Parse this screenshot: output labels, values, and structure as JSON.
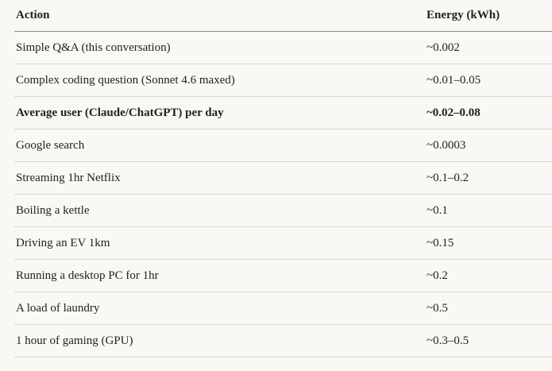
{
  "table": {
    "header": [
      "Action",
      "Energy (kWh)"
    ],
    "rows": [
      [
        "Simple Q&A (this conversation)",
        "~0.002"
      ],
      [
        "Complex coding question (Sonnet 4.6 maxed)",
        "~0.01–0.05"
      ],
      [
        "Average user (Claude/ChatGPT) per day",
        "~0.02–0.08"
      ],
      [
        "Google search",
        "~0.0003"
      ],
      [
        "Streaming 1hr Netflix",
        "~0.1–0.2"
      ],
      [
        "Boiling a kettle",
        "~0.1"
      ],
      [
        "Driving an EV 1km",
        "~0.15"
      ],
      [
        "Running a desktop PC for 1hr",
        "~0.2"
      ],
      [
        "A load of laundry",
        "~0.5"
      ],
      [
        "1 hour of gaming (GPU)",
        "~0.3–0.5"
      ]
    ]
  }
}
